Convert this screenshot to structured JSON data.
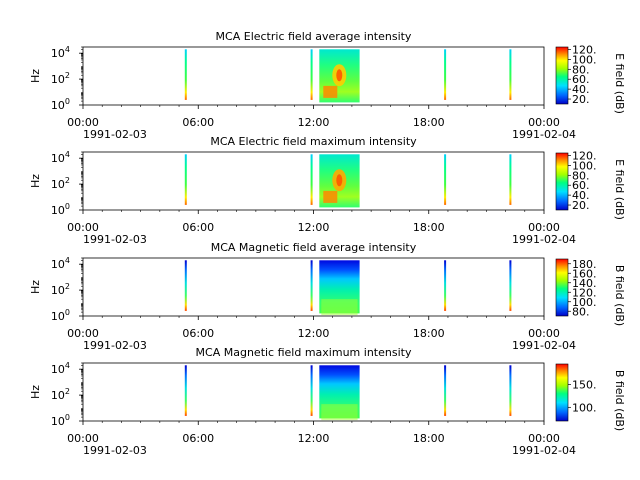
{
  "chart_data": [
    {
      "type": "heatmap",
      "title": "MCA  Electric field average intensity",
      "ylabel": "Hz",
      "yscale": "log",
      "ylim": [
        1,
        30000
      ],
      "yticks": [
        {
          "exp": "0"
        },
        {
          "exp": "2"
        },
        {
          "exp": "4"
        }
      ],
      "x_tick_labels": [
        "00:00",
        "06:00",
        "12:00",
        "18:00",
        "00:00"
      ],
      "x_date_start": "1991-02-03",
      "x_date_end": "1991-02-04",
      "xlim_hours": [
        0,
        24
      ],
      "colorbar": {
        "label": "E field (dB)",
        "range": [
          10,
          125
        ],
        "ticks": [
          20,
          40,
          60,
          80,
          100,
          120
        ]
      },
      "bursts_hours": [
        {
          "start": 5.3,
          "end": 5.4
        },
        {
          "start": 11.85,
          "end": 11.95
        },
        {
          "start": 12.3,
          "end": 14.4
        },
        {
          "start": 18.8,
          "end": 18.9
        },
        {
          "start": 22.2,
          "end": 22.3
        }
      ]
    },
    {
      "type": "heatmap",
      "title": "MCA  Electric field maximum intensity",
      "ylabel": "Hz",
      "yscale": "log",
      "ylim": [
        1,
        30000
      ],
      "yticks": [
        {
          "exp": "0"
        },
        {
          "exp": "2"
        },
        {
          "exp": "4"
        }
      ],
      "x_tick_labels": [
        "00:00",
        "06:00",
        "12:00",
        "18:00",
        "00:00"
      ],
      "x_date_start": "1991-02-03",
      "x_date_end": "1991-02-04",
      "xlim_hours": [
        0,
        24
      ],
      "colorbar": {
        "label": "E field (dB)",
        "range": [
          10,
          125
        ],
        "ticks": [
          20,
          40,
          60,
          80,
          100,
          120
        ]
      },
      "bursts_hours": [
        {
          "start": 5.3,
          "end": 5.4
        },
        {
          "start": 11.85,
          "end": 11.95
        },
        {
          "start": 12.3,
          "end": 14.4
        },
        {
          "start": 18.8,
          "end": 18.9
        },
        {
          "start": 22.2,
          "end": 22.3
        }
      ]
    },
    {
      "type": "heatmap",
      "title": "MCA  Magnetic field average intensity",
      "ylabel": "Hz",
      "yscale": "log",
      "ylim": [
        1,
        30000
      ],
      "yticks": [
        {
          "exp": "0"
        },
        {
          "exp": "2"
        },
        {
          "exp": "4"
        }
      ],
      "x_tick_labels": [
        "00:00",
        "06:00",
        "12:00",
        "18:00",
        "00:00"
      ],
      "x_date_start": "1991-02-03",
      "x_date_end": "1991-02-04",
      "xlim_hours": [
        0,
        24
      ],
      "colorbar": {
        "label": "B field (dB)",
        "range": [
          70,
          190
        ],
        "ticks": [
          80,
          100,
          120,
          140,
          160,
          180
        ]
      },
      "bursts_hours": [
        {
          "start": 5.3,
          "end": 5.4
        },
        {
          "start": 11.85,
          "end": 11.95
        },
        {
          "start": 12.3,
          "end": 14.4
        },
        {
          "start": 18.8,
          "end": 18.9
        },
        {
          "start": 22.2,
          "end": 22.3
        }
      ]
    },
    {
      "type": "heatmap",
      "title": "MCA  Magnetic field maximum intensity",
      "ylabel": "Hz",
      "yscale": "log",
      "ylim": [
        1,
        30000
      ],
      "yticks": [
        {
          "exp": "0"
        },
        {
          "exp": "2"
        },
        {
          "exp": "4"
        }
      ],
      "x_tick_labels": [
        "00:00",
        "06:00",
        "12:00",
        "18:00",
        "00:00"
      ],
      "x_date_start": "1991-02-03",
      "x_date_end": "1991-02-04",
      "xlim_hours": [
        0,
        24
      ],
      "colorbar": {
        "label": "B field (dB)",
        "range": [
          70,
          195
        ],
        "ticks": [
          100,
          150
        ]
      },
      "bursts_hours": [
        {
          "start": 5.3,
          "end": 5.4
        },
        {
          "start": 11.85,
          "end": 11.95
        },
        {
          "start": 12.3,
          "end": 14.4
        },
        {
          "start": 18.8,
          "end": 18.9
        },
        {
          "start": 22.2,
          "end": 22.3
        }
      ]
    }
  ]
}
